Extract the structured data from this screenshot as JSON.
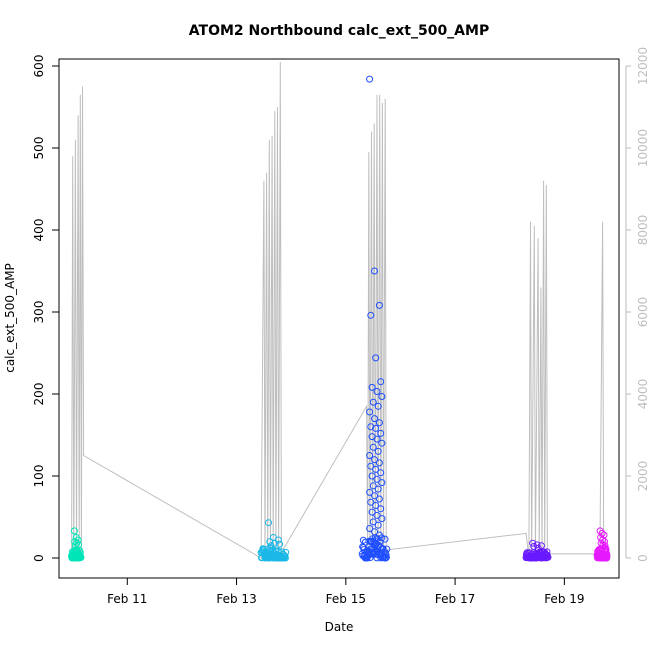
{
  "chart_data": {
    "type": "scatter",
    "title": "ATOM2 Northbound calc_ext_500_AMP",
    "xlabel": "Date",
    "ylabel": "calc_ext_500_AMP",
    "x_tick_labels": [
      "Feb 11",
      "Feb 13",
      "Feb 15",
      "Feb 17",
      "Feb 19"
    ],
    "x_tick_days": [
      11,
      13,
      15,
      17,
      19
    ],
    "xlim_days": [
      9.75,
      20.0
    ],
    "ylim": [
      0,
      600
    ],
    "y_ticks": [
      0,
      100,
      200,
      300,
      400,
      500,
      600
    ],
    "y2lim": [
      0,
      12000
    ],
    "y2_ticks": [
      0,
      2000,
      4000,
      6000,
      8000,
      10000,
      12000
    ],
    "grid": false,
    "legend": "none",
    "colors": {
      "line": "#bebebe",
      "frame": "#000000",
      "cluster1": "#00e5b8",
      "cluster2": "#1ab8e6",
      "cluster3": "#1f4fff",
      "cluster4": "#6a1aff",
      "cluster5": "#e61aff"
    },
    "scatter_clusters": [
      {
        "color": "cluster1",
        "x_start": 9.98,
        "x_end": 10.15,
        "base_max": 10,
        "outliers": [
          33,
          25,
          22,
          20,
          18,
          16,
          15
        ]
      },
      {
        "color": "cluster2",
        "x_start": 13.45,
        "x_end": 13.9,
        "base_max": 12,
        "outliers": [
          43,
          25,
          22,
          20,
          18,
          17,
          15
        ]
      },
      {
        "color": "cluster3",
        "x_start": 15.3,
        "x_end": 15.75,
        "base_max": 25,
        "outliers": [
          584,
          350,
          308,
          296,
          244,
          215,
          208,
          203,
          197,
          190,
          185,
          178,
          170,
          165,
          160,
          158,
          152,
          148,
          145,
          140,
          135,
          130,
          125,
          120,
          116,
          112,
          108,
          104,
          100,
          96,
          92,
          88,
          84,
          80,
          76,
          72,
          68,
          64,
          60,
          56,
          52,
          48,
          44,
          40,
          36,
          32,
          28,
          20,
          18
        ]
      },
      {
        "color": "cluster4",
        "x_start": 18.3,
        "x_end": 18.7,
        "base_max": 8,
        "outliers": [
          18,
          16,
          15,
          14,
          12
        ]
      },
      {
        "color": "cluster5",
        "x_start": 19.6,
        "x_end": 19.78,
        "base_max": 12,
        "outliers": [
          33,
          30,
          28,
          25,
          22,
          20,
          18,
          16,
          15
        ]
      }
    ],
    "secondary_line": [
      [
        9.98,
        0
      ],
      [
        10.0,
        9800
      ],
      [
        10.02,
        0
      ],
      [
        10.05,
        10200
      ],
      [
        10.07,
        0
      ],
      [
        10.1,
        10800
      ],
      [
        10.12,
        0
      ],
      [
        10.14,
        11300
      ],
      [
        10.16,
        0
      ],
      [
        10.18,
        11500
      ],
      [
        10.2,
        2500
      ],
      [
        13.45,
        0
      ],
      [
        13.5,
        9200
      ],
      [
        13.52,
        0
      ],
      [
        13.55,
        9400
      ],
      [
        13.57,
        0
      ],
      [
        13.6,
        10200
      ],
      [
        13.62,
        0
      ],
      [
        13.65,
        10300
      ],
      [
        13.67,
        0
      ],
      [
        13.7,
        10900
      ],
      [
        13.72,
        0
      ],
      [
        13.75,
        11000
      ],
      [
        13.77,
        0
      ],
      [
        13.8,
        12100
      ],
      [
        13.82,
        0
      ],
      [
        13.85,
        200
      ],
      [
        15.38,
        3700
      ],
      [
        15.4,
        0
      ],
      [
        15.42,
        9900
      ],
      [
        15.44,
        0
      ],
      [
        15.47,
        10400
      ],
      [
        15.49,
        0
      ],
      [
        15.52,
        10600
      ],
      [
        15.54,
        0
      ],
      [
        15.57,
        11300
      ],
      [
        15.59,
        0
      ],
      [
        15.62,
        11300
      ],
      [
        15.64,
        0
      ],
      [
        15.67,
        11100
      ],
      [
        15.69,
        0
      ],
      [
        15.72,
        11200
      ],
      [
        15.74,
        0
      ],
      [
        15.76,
        200
      ],
      [
        18.3,
        600
      ],
      [
        18.35,
        0
      ],
      [
        18.38,
        8200
      ],
      [
        18.4,
        0
      ],
      [
        18.45,
        8100
      ],
      [
        18.47,
        0
      ],
      [
        18.52,
        7800
      ],
      [
        18.54,
        0
      ],
      [
        18.57,
        6600
      ],
      [
        18.59,
        0
      ],
      [
        18.62,
        9200
      ],
      [
        18.64,
        0
      ],
      [
        18.67,
        9100
      ],
      [
        18.69,
        0
      ],
      [
        18.72,
        100
      ],
      [
        19.6,
        100
      ],
      [
        19.65,
        0
      ],
      [
        19.7,
        8200
      ],
      [
        19.72,
        0
      ],
      [
        19.78,
        0
      ]
    ]
  }
}
